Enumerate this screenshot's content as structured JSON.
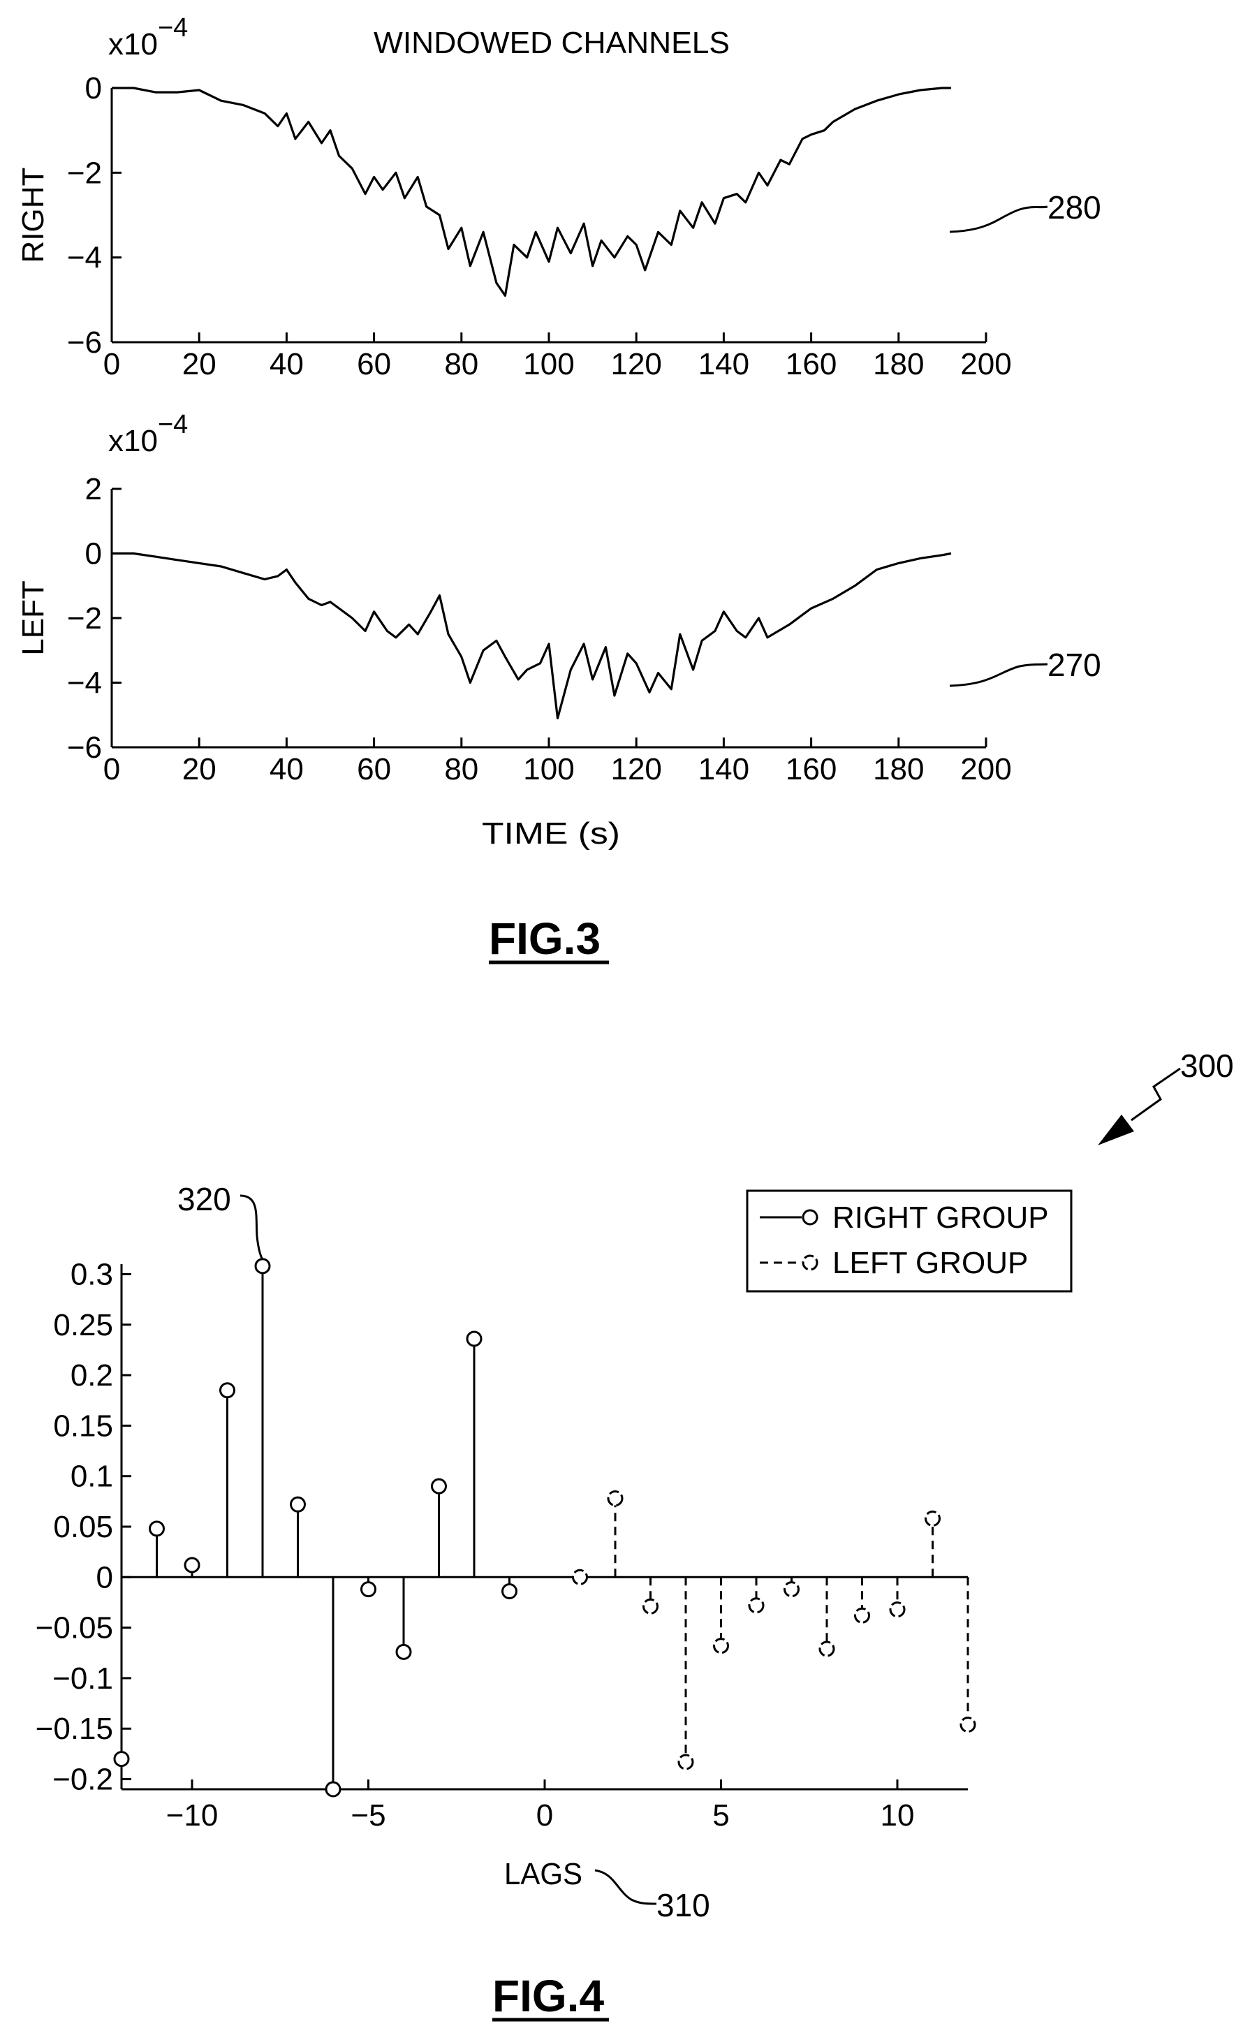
{
  "fig3": {
    "title": "WINDOWED CHANNELS",
    "scale_label": "x10",
    "scale_exp": "−4",
    "scale_label2": "x10",
    "scale_exp2": "−4",
    "xlabel": "TIME (s)",
    "caption": "FIG.3",
    "ref_right": "280",
    "ref_left": "270"
  },
  "fig4": {
    "xlabel": "LAGS",
    "caption": "FIG.4",
    "ref_xaxis": "310",
    "ref_peak": "320",
    "ref_figure": "300"
  },
  "chart_data": [
    {
      "type": "line",
      "ylabel": "RIGHT",
      "xlim": [
        0,
        200
      ],
      "ylim": [
        -6,
        0
      ],
      "y_scale_factor": "x10^-4",
      "xticks": [
        "0",
        "20",
        "40",
        "60",
        "80",
        "100",
        "120",
        "140",
        "160",
        "180",
        "200"
      ],
      "yticks": [
        "0",
        "−2",
        "−4",
        "−6"
      ],
      "x": [
        0,
        5,
        10,
        15,
        20,
        25,
        30,
        35,
        38,
        40,
        42,
        45,
        48,
        50,
        52,
        55,
        58,
        60,
        62,
        65,
        67,
        70,
        72,
        75,
        77,
        80,
        82,
        85,
        88,
        90,
        92,
        95,
        97,
        100,
        102,
        105,
        108,
        110,
        112,
        115,
        118,
        120,
        122,
        125,
        128,
        130,
        133,
        135,
        138,
        140,
        143,
        145,
        148,
        150,
        153,
        155,
        158,
        160,
        163,
        165,
        170,
        175,
        180,
        185,
        190,
        192
      ],
      "y": [
        0,
        0,
        -0.1,
        -0.1,
        -0.05,
        -0.3,
        -0.4,
        -0.6,
        -0.9,
        -0.6,
        -1.2,
        -0.8,
        -1.3,
        -1.0,
        -1.6,
        -1.9,
        -2.5,
        -2.1,
        -2.4,
        -2.0,
        -2.6,
        -2.1,
        -2.8,
        -3.0,
        -3.8,
        -3.3,
        -4.2,
        -3.4,
        -4.6,
        -4.9,
        -3.7,
        -4.0,
        -3.4,
        -4.1,
        -3.3,
        -3.9,
        -3.2,
        -4.2,
        -3.6,
        -4.0,
        -3.5,
        -3.7,
        -4.3,
        -3.4,
        -3.7,
        -2.9,
        -3.3,
        -2.7,
        -3.2,
        -2.6,
        -2.5,
        -2.7,
        -2.0,
        -2.3,
        -1.7,
        -1.8,
        -1.2,
        -1.1,
        -1.0,
        -0.8,
        -0.5,
        -0.3,
        -0.15,
        -0.05,
        0,
        0
      ]
    },
    {
      "type": "line",
      "ylabel": "LEFT",
      "xlim": [
        0,
        200
      ],
      "ylim": [
        -6,
        2
      ],
      "y_scale_factor": "x10^-4",
      "xticks": [
        "0",
        "20",
        "40",
        "60",
        "80",
        "100",
        "120",
        "140",
        "160",
        "180",
        "200"
      ],
      "yticks": [
        "2",
        "0",
        "−2",
        "−4",
        "−6"
      ],
      "x": [
        0,
        5,
        10,
        15,
        20,
        25,
        30,
        35,
        38,
        40,
        42,
        45,
        48,
        50,
        55,
        58,
        60,
        63,
        65,
        68,
        70,
        73,
        75,
        77,
        80,
        82,
        85,
        88,
        90,
        93,
        95,
        98,
        100,
        102,
        105,
        108,
        110,
        113,
        115,
        118,
        120,
        123,
        125,
        128,
        130,
        133,
        135,
        138,
        140,
        143,
        145,
        148,
        150,
        155,
        160,
        165,
        170,
        175,
        180,
        185,
        190,
        192
      ],
      "y": [
        0,
        0,
        -0.1,
        -0.2,
        -0.3,
        -0.4,
        -0.6,
        -0.8,
        -0.7,
        -0.5,
        -0.9,
        -1.4,
        -1.6,
        -1.5,
        -2.0,
        -2.4,
        -1.8,
        -2.4,
        -2.6,
        -2.2,
        -2.5,
        -1.8,
        -1.3,
        -2.5,
        -3.2,
        -4.0,
        -3.0,
        -2.7,
        -3.2,
        -3.9,
        -3.6,
        -3.4,
        -2.8,
        -5.1,
        -3.6,
        -2.8,
        -3.9,
        -2.9,
        -4.4,
        -3.1,
        -3.4,
        -4.3,
        -3.7,
        -4.2,
        -2.5,
        -3.6,
        -2.7,
        -2.4,
        -1.8,
        -2.4,
        -2.6,
        -2.0,
        -2.6,
        -2.2,
        -1.7,
        -1.4,
        -1.0,
        -0.5,
        -0.3,
        -0.15,
        -0.05,
        0
      ]
    },
    {
      "type": "stem",
      "xlabel": "LAGS",
      "xlim": [
        -12,
        12
      ],
      "ylim": [
        -0.21,
        0.31
      ],
      "xticks": [
        "−10",
        "−5",
        "0",
        "5",
        "10"
      ],
      "yticks": [
        "0.3",
        "0.25",
        "0.2",
        "0.15",
        "0.1",
        "0.05",
        "0",
        "−0.05",
        "−0.1",
        "−0.15",
        "−0.2"
      ],
      "legend": {
        "position": "top-right"
      },
      "series": [
        {
          "name": "RIGHT GROUP",
          "line": "solid",
          "lags": [
            -12,
            -11,
            -10,
            -9,
            -8,
            -7,
            -6,
            -5,
            -4,
            -3,
            -2,
            -1
          ],
          "values": [
            -0.18,
            0.048,
            0.012,
            0.185,
            0.308,
            0.072,
            -0.21,
            -0.012,
            -0.074,
            0.09,
            0.236,
            -0.014
          ]
        },
        {
          "name": "LEFT GROUP",
          "line": "dashed",
          "lags": [
            1,
            2,
            3,
            4,
            5,
            6,
            7,
            8,
            9,
            10,
            11,
            12
          ],
          "values": [
            0.0,
            0.078,
            -0.029,
            -0.183,
            -0.068,
            -0.028,
            -0.012,
            -0.071,
            -0.038,
            -0.032,
            0.058,
            -0.146
          ]
        }
      ]
    }
  ]
}
